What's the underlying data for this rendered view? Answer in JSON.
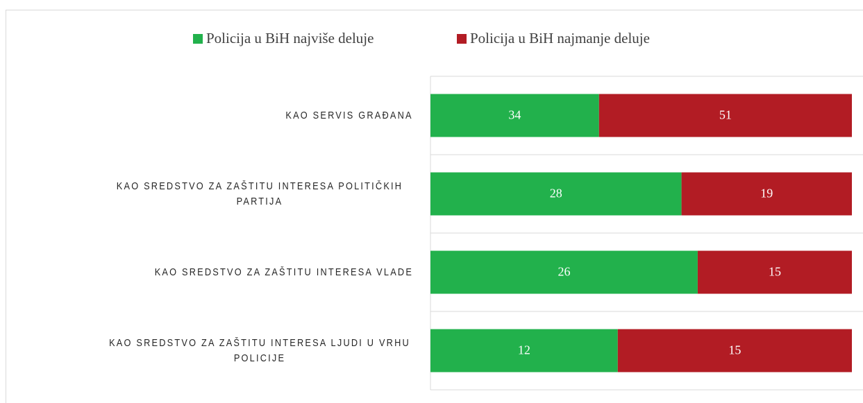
{
  "chart_data": {
    "type": "bar",
    "orientation": "horizontal",
    "stacked": "percent",
    "categories": [
      "KAO SERVIS GRAĐANA",
      "KAO SREDSTVO ZA ZAŠTITU INTERESA POLITIČKIH PARTIJA",
      "KAO SREDSTVO ZA ZAŠTITU INTERESA VLADE",
      "KAO SREDSTVO ZA ZAŠTITU INTERESA LJUDI U VRHU POLICIJE"
    ],
    "series": [
      {
        "name": "Policija u BiH najviše deluje",
        "color": "#22b14c",
        "values": [
          34,
          28,
          26,
          12
        ]
      },
      {
        "name": "Policija u BiH najmanje deluje",
        "color": "#b21c24",
        "values": [
          51,
          19,
          15,
          15
        ]
      }
    ],
    "legend": "top",
    "grid": true
  }
}
